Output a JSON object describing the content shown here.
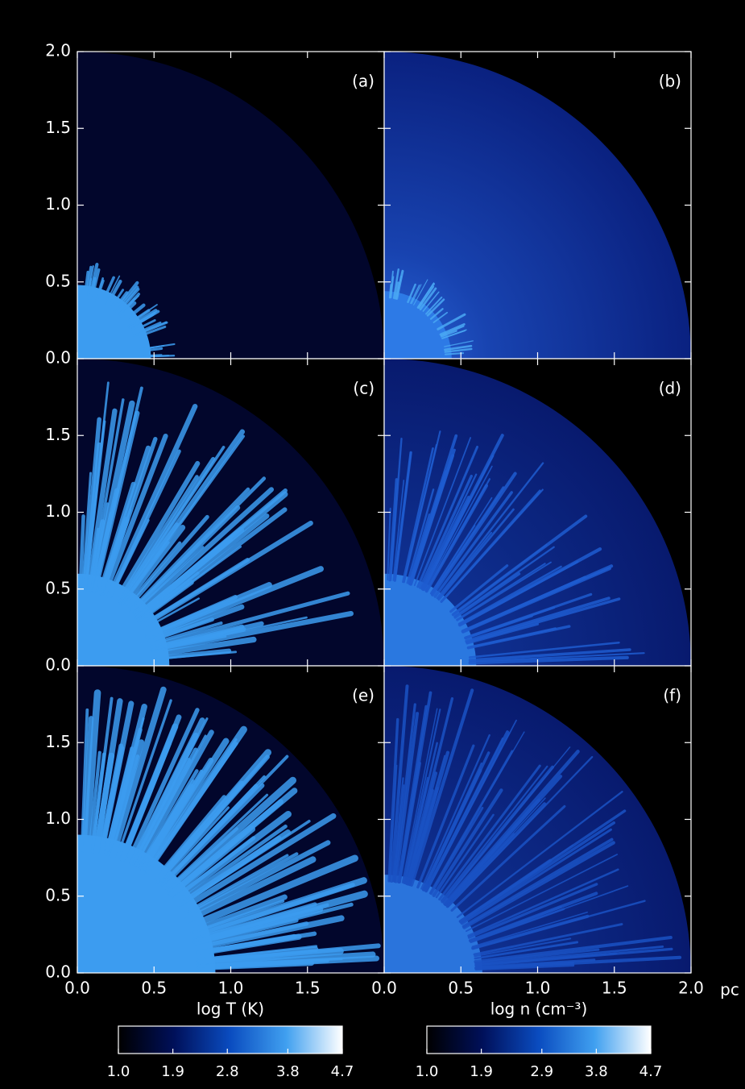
{
  "chart_data": [
    {
      "type": "image",
      "label": "(a)",
      "xlim": [
        0,
        2
      ],
      "ylim": [
        0,
        2
      ],
      "yticks": [
        {
          "value": 0,
          "label": "0.0"
        },
        0.5,
        {
          "value": 1,
          "label": "1.0"
        },
        1.5,
        {
          "value": 2,
          "label": "2.0"
        }
      ]
    },
    {
      "type": "image",
      "label": "(b)",
      "xlim": [
        0,
        2
      ],
      "ylim": [
        0,
        2
      ]
    },
    {
      "type": "image",
      "label": "(c)",
      "xlim": [
        0,
        2
      ],
      "ylim": [
        0,
        2
      ],
      "yticks": [
        {
          "value": 0,
          "label": "0.0"
        },
        0.5,
        {
          "value": 1,
          "label": "1.0"
        },
        1.5
      ]
    },
    {
      "type": "image",
      "label": "(d)",
      "xlim": [
        0,
        2
      ],
      "ylim": [
        0,
        2
      ]
    },
    {
      "type": "image",
      "label": "(e)",
      "xlim": [
        0,
        2
      ],
      "ylim": [
        0,
        2
      ],
      "yticks": [
        {
          "value": 0,
          "label": "0.0"
        },
        0.5,
        {
          "value": 1,
          "label": "1.0"
        },
        1.5
      ],
      "xticks": [
        {
          "value": 0,
          "label": "0.0"
        },
        0.5,
        {
          "value": 1,
          "label": "1.0"
        },
        1.5
      ]
    },
    {
      "type": "image",
      "label": "(f)",
      "xlim": [
        0,
        2
      ],
      "ylim": [
        0,
        2
      ],
      "xticks": [
        {
          "value": 0,
          "label": "0.0"
        },
        0.5,
        {
          "value": 1,
          "label": "1.0"
        },
        1.5,
        {
          "value": 2,
          "label": "2.0"
        }
      ],
      "x_unit": "pc"
    },
    {
      "type": "colorbar",
      "title": "log T (K)",
      "xlim": [
        1,
        4.7
      ],
      "xticks": [
        {
          "value": 1,
          "label": "1.0"
        },
        1.9,
        2.8,
        3.8,
        4.7
      ]
    },
    {
      "type": "colorbar",
      "title": "log n (cm⁻³)",
      "xlim": [
        1,
        4.7
      ],
      "xticks": [
        {
          "value": 1,
          "label": "1.0"
        },
        1.9,
        2.9,
        3.8,
        4.7
      ]
    }
  ]
}
